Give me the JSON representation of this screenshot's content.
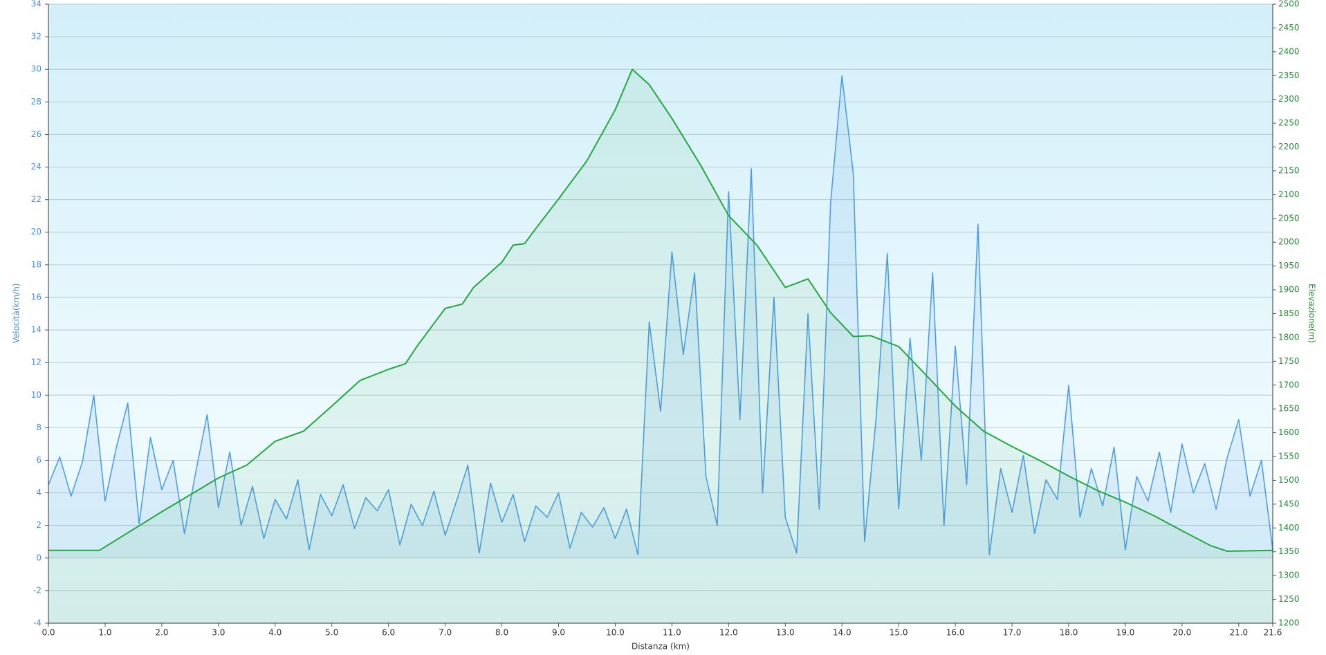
{
  "chart_data": {
    "type": "line",
    "xlabel": "Distanza  (km)",
    "ylabel": "Velocità(km/h)",
    "y2label": "Elevazione(m)",
    "xlim": [
      0,
      21.6
    ],
    "ylim": [
      -4,
      34
    ],
    "y2lim": [
      1200,
      2500
    ],
    "grid": true,
    "xticks": [
      {
        "value": 0,
        "label": "0.0"
      },
      {
        "value": 1,
        "label": "1.0"
      },
      {
        "value": 2,
        "label": "2.0"
      },
      {
        "value": 3,
        "label": "3.0"
      },
      {
        "value": 4,
        "label": "4.0"
      },
      {
        "value": 5,
        "label": "5.0"
      },
      {
        "value": 6,
        "label": "6.0"
      },
      {
        "value": 7,
        "label": "7.0"
      },
      {
        "value": 8,
        "label": "8.0"
      },
      {
        "value": 9,
        "label": "9.0"
      },
      {
        "value": 10,
        "label": "10.0"
      },
      {
        "value": 11,
        "label": "11.0"
      },
      {
        "value": 12,
        "label": "12.0"
      },
      {
        "value": 13,
        "label": "13.0"
      },
      {
        "value": 14,
        "label": "14.0"
      },
      {
        "value": 15,
        "label": "15.0"
      },
      {
        "value": 16,
        "label": "16.0"
      },
      {
        "value": 17,
        "label": "17.0"
      },
      {
        "value": 18,
        "label": "18.0"
      },
      {
        "value": 19,
        "label": "19.0"
      },
      {
        "value": 20,
        "label": "20.0"
      },
      {
        "value": 21,
        "label": "21.0"
      },
      21.6
    ],
    "yticks": [
      -4,
      -2,
      0,
      2,
      4,
      6,
      8,
      10,
      12,
      14,
      16,
      18,
      20,
      22,
      24,
      26,
      28,
      30,
      32,
      34
    ],
    "y2ticks": [
      1200,
      1250,
      1300,
      1350,
      1400,
      1450,
      1500,
      1550,
      1600,
      1650,
      1700,
      1750,
      1800,
      1850,
      1900,
      1950,
      2000,
      2050,
      2100,
      2150,
      2200,
      2250,
      2300,
      2350,
      2400,
      2450,
      2500
    ],
    "series": [
      {
        "name": "Velocità",
        "color": "#4f9de8",
        "axis": "y",
        "x": [
          0,
          0.2,
          0.4,
          0.6,
          0.8,
          1,
          1.2,
          1.4,
          1.6,
          1.8,
          2,
          2.2,
          2.4,
          2.6,
          2.8,
          3,
          3.2,
          3.4,
          3.6,
          3.8,
          4,
          4.2,
          4.4,
          4.6,
          4.8,
          5,
          5.2,
          5.4,
          5.6,
          5.8,
          6,
          6.2,
          6.4,
          6.6,
          6.8,
          7,
          7.2,
          7.4,
          7.6,
          7.8,
          8,
          8.2,
          8.4,
          8.6,
          8.8,
          9,
          9.2,
          9.4,
          9.6,
          9.8,
          10,
          10.2,
          10.4,
          10.6,
          10.8,
          11,
          11.2,
          11.4,
          11.6,
          11.8,
          12,
          12.2,
          12.4,
          12.6,
          12.8,
          13,
          13.2,
          13.4,
          13.6,
          13.8,
          14,
          14.2,
          14.4,
          14.6,
          14.8,
          15,
          15.2,
          15.4,
          15.6,
          15.8,
          16,
          16.2,
          16.4,
          16.6,
          16.8,
          17,
          17.2,
          17.4,
          17.6,
          17.8,
          18,
          18.2,
          18.4,
          18.6,
          18.8,
          19,
          19.2,
          19.4,
          19.6,
          19.8,
          20,
          20.2,
          20.4,
          20.6,
          20.8,
          21,
          21.2,
          21.4,
          21.6
        ],
        "values": [
          4.5,
          6.2,
          3.8,
          5.9,
          10.0,
          3.5,
          6.8,
          9.5,
          2.1,
          7.4,
          4.2,
          6.0,
          1.5,
          5.3,
          8.8,
          3.1,
          6.5,
          2.0,
          4.4,
          1.2,
          3.6,
          2.4,
          4.8,
          0.5,
          3.9,
          2.6,
          4.5,
          1.8,
          3.7,
          2.9,
          4.2,
          0.8,
          3.3,
          2.0,
          4.1,
          1.4,
          3.5,
          5.7,
          0.3,
          4.6,
          2.2,
          3.9,
          1.0,
          3.2,
          2.5,
          4.0,
          0.6,
          2.8,
          1.9,
          3.1,
          1.2,
          3.0,
          0.2,
          14.5,
          9.0,
          18.8,
          12.5,
          17.5,
          5.0,
          2.0,
          22.5,
          8.5,
          23.9,
          4.0,
          16.0,
          2.5,
          0.3,
          15.0,
          3.0,
          21.8,
          29.6,
          23.6,
          1.0,
          8.5,
          18.7,
          3.0,
          13.5,
          6.0,
          17.5,
          2.0,
          13.0,
          4.5,
          20.5,
          0.2,
          5.5,
          2.8,
          6.3,
          1.5,
          4.8,
          3.6,
          10.6,
          2.5,
          5.5,
          3.2,
          6.8,
          0.5,
          5.0,
          3.5,
          6.5,
          2.8,
          7.0,
          4.0,
          5.8,
          3.0,
          6.2,
          8.5,
          3.8,
          6.0,
          0.5
        ]
      },
      {
        "name": "Elevazione",
        "color": "#22a83c",
        "axis": "y2",
        "x": [
          0,
          0.9,
          2,
          3,
          3.5,
          4,
          4.5,
          5,
          5.5,
          6,
          6.3,
          6.5,
          7,
          7.3,
          7.5,
          8,
          8.2,
          8.4,
          8.6,
          9,
          9.5,
          10,
          10.3,
          10.6,
          11,
          11.5,
          12,
          12.5,
          13,
          13.4,
          13.8,
          14.2,
          14.5,
          15,
          15.5,
          16,
          16.5,
          17,
          17.5,
          18,
          18.5,
          19,
          19.5,
          20,
          20.5,
          20.8,
          21.6
        ],
        "values": [
          1353,
          1353,
          1434,
          1505,
          1532,
          1582,
          1603,
          1656,
          1710,
          1733,
          1745,
          1781,
          1861,
          1870,
          1905,
          1958,
          1994,
          1997,
          2029,
          2091,
          2171,
          2278,
          2363,
          2331,
          2260,
          2163,
          2056,
          1994,
          1905,
          1923,
          1852,
          1802,
          1804,
          1781,
          1719,
          1656,
          1603,
          1571,
          1541,
          1509,
          1479,
          1454,
          1426,
          1394,
          1363,
          1351,
          1353
        ]
      }
    ]
  }
}
